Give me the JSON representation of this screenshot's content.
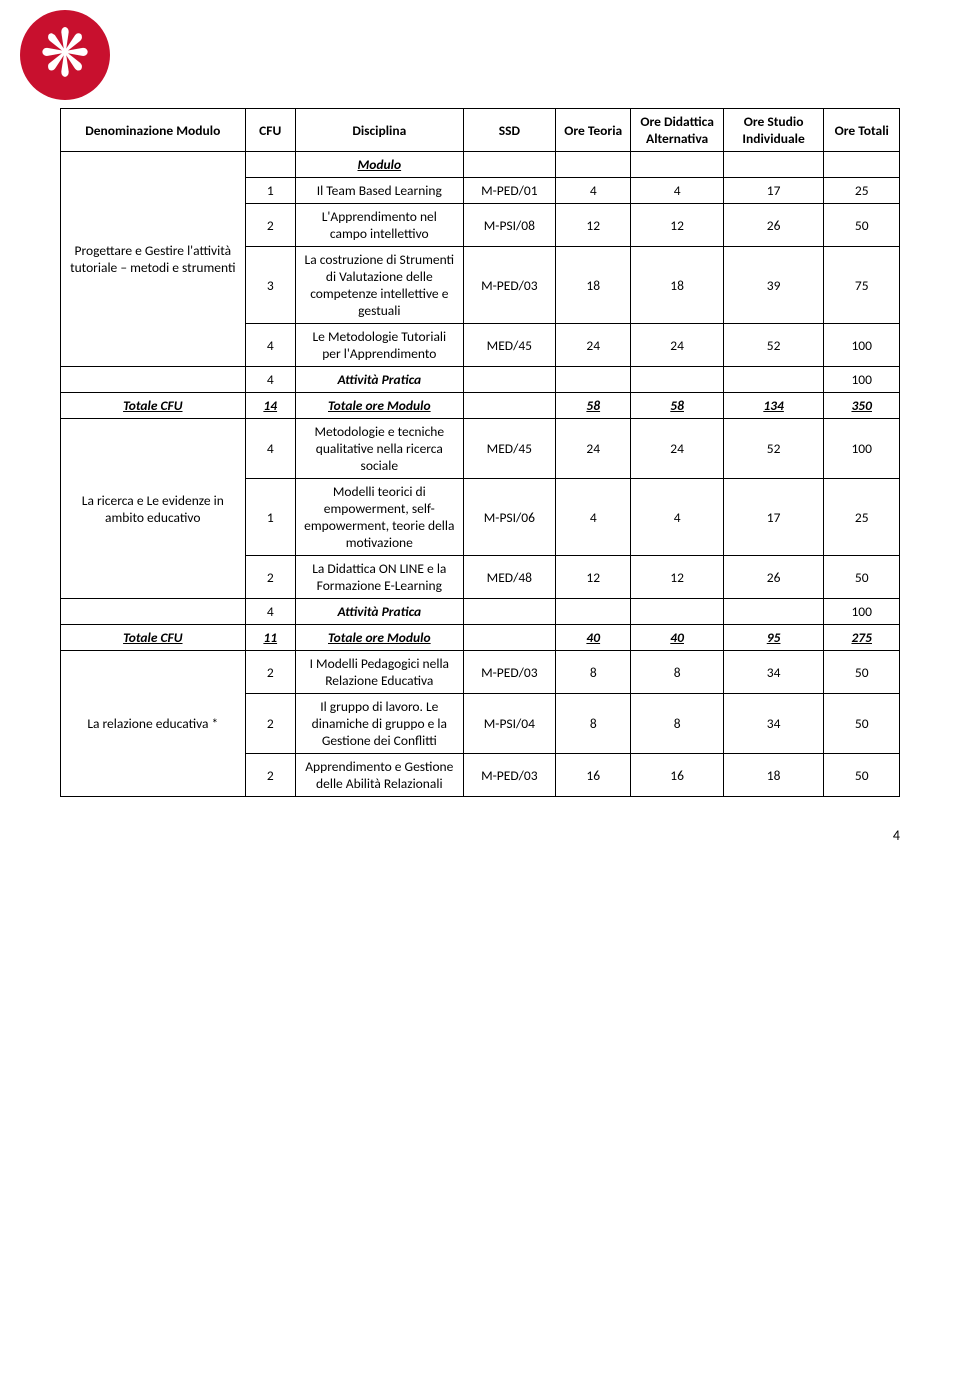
{
  "page_number": "4",
  "logo_glyph": "❋",
  "logo_bg": "#c8102e",
  "headers": {
    "denom": "Denominazione Modulo",
    "cfu": "CFU",
    "disc": "Disciplina",
    "ssd": "SSD",
    "ore_teoria": "Ore Teoria",
    "ore_did": "Ore Didattica Alternativa",
    "ore_studio": "Ore Studio Individuale",
    "ore_tot": "Ore Totali",
    "modulo": "Modulo"
  },
  "section1": {
    "title": "Progettare e Gestire l'attività  tutoriale – metodi e strumenti",
    "r1": {
      "cfu": "1",
      "disc": "Il Team Based Learning",
      "ssd": "M-PED/01",
      "t": "4",
      "d": "4",
      "s": "17",
      "tot": "25"
    },
    "r2": {
      "cfu": "2",
      "disc": "L'Apprendimento nel campo intellettivo",
      "ssd": "M-PSI/08",
      "t": "12",
      "d": "12",
      "s": "26",
      "tot": "50"
    },
    "r3": {
      "cfu": "3",
      "disc": "La costruzione di Strumenti di Valutazione delle competenze intellettive e gestuali",
      "ssd": "M-PED/03",
      "t": "18",
      "d": "18",
      "s": "39",
      "tot": "75"
    },
    "r4": {
      "cfu": "4",
      "disc": "Le Metodologie Tutoriali per l'Apprendimento",
      "ssd": "MED/45",
      "t": "24",
      "d": "24",
      "s": "52",
      "tot": "100"
    },
    "ap": {
      "cfu": "4",
      "label": "Attività Pratica",
      "tot": "100"
    },
    "totals": {
      "label": "Totale CFU",
      "cfu": "14",
      "tore": "Totale ore Modulo",
      "t": "58",
      "d": "58",
      "s": "134",
      "tot": "350"
    }
  },
  "section2": {
    "title": "La ricerca e Le evidenze in ambito educativo",
    "r1": {
      "cfu": "4",
      "disc": "Metodologie e tecniche qualitative nella ricerca sociale",
      "ssd": "MED/45",
      "t": "24",
      "d": "24",
      "s": "52",
      "tot": "100"
    },
    "r2": {
      "cfu": "1",
      "disc": "Modelli teorici di empowerment, self-empowerment, teorie della motivazione",
      "ssd": "M-PSI/06",
      "t": "4",
      "d": "4",
      "s": "17",
      "tot": "25"
    },
    "r3": {
      "cfu": "2",
      "disc": "La Didattica ON LINE e la Formazione E-Learning",
      "ssd": "MED/48",
      "t": "12",
      "d": "12",
      "s": "26",
      "tot": "50"
    },
    "ap": {
      "cfu": "4",
      "label": "Attività Pratica",
      "tot": "100"
    },
    "totals": {
      "label": "Totale CFU",
      "cfu": "11",
      "tore": "Totale ore Modulo",
      "t": "40",
      "d": "40",
      "s": "95",
      "tot": "275"
    }
  },
  "section3": {
    "title": "La relazione educativa *",
    "r1": {
      "cfu": "2",
      "disc": "I Modelli Pedagogici nella  Relazione Educativa",
      "ssd": "M-PED/03",
      "t": "8",
      "d": "8",
      "s": "34",
      "tot": "50"
    },
    "r2": {
      "cfu": "2",
      "disc": "Il gruppo di lavoro. Le dinamiche di gruppo e la Gestione dei Conflitti",
      "ssd": "M-PSI/04",
      "t": "8",
      "d": "8",
      "s": "34",
      "tot": "50"
    },
    "r3": {
      "cfu": "2",
      "disc": "Apprendimento e Gestione delle Abilità Relazionali",
      "ssd": "M-PED/03",
      "t": "16",
      "d": "16",
      "s": "18",
      "tot": "50"
    }
  }
}
